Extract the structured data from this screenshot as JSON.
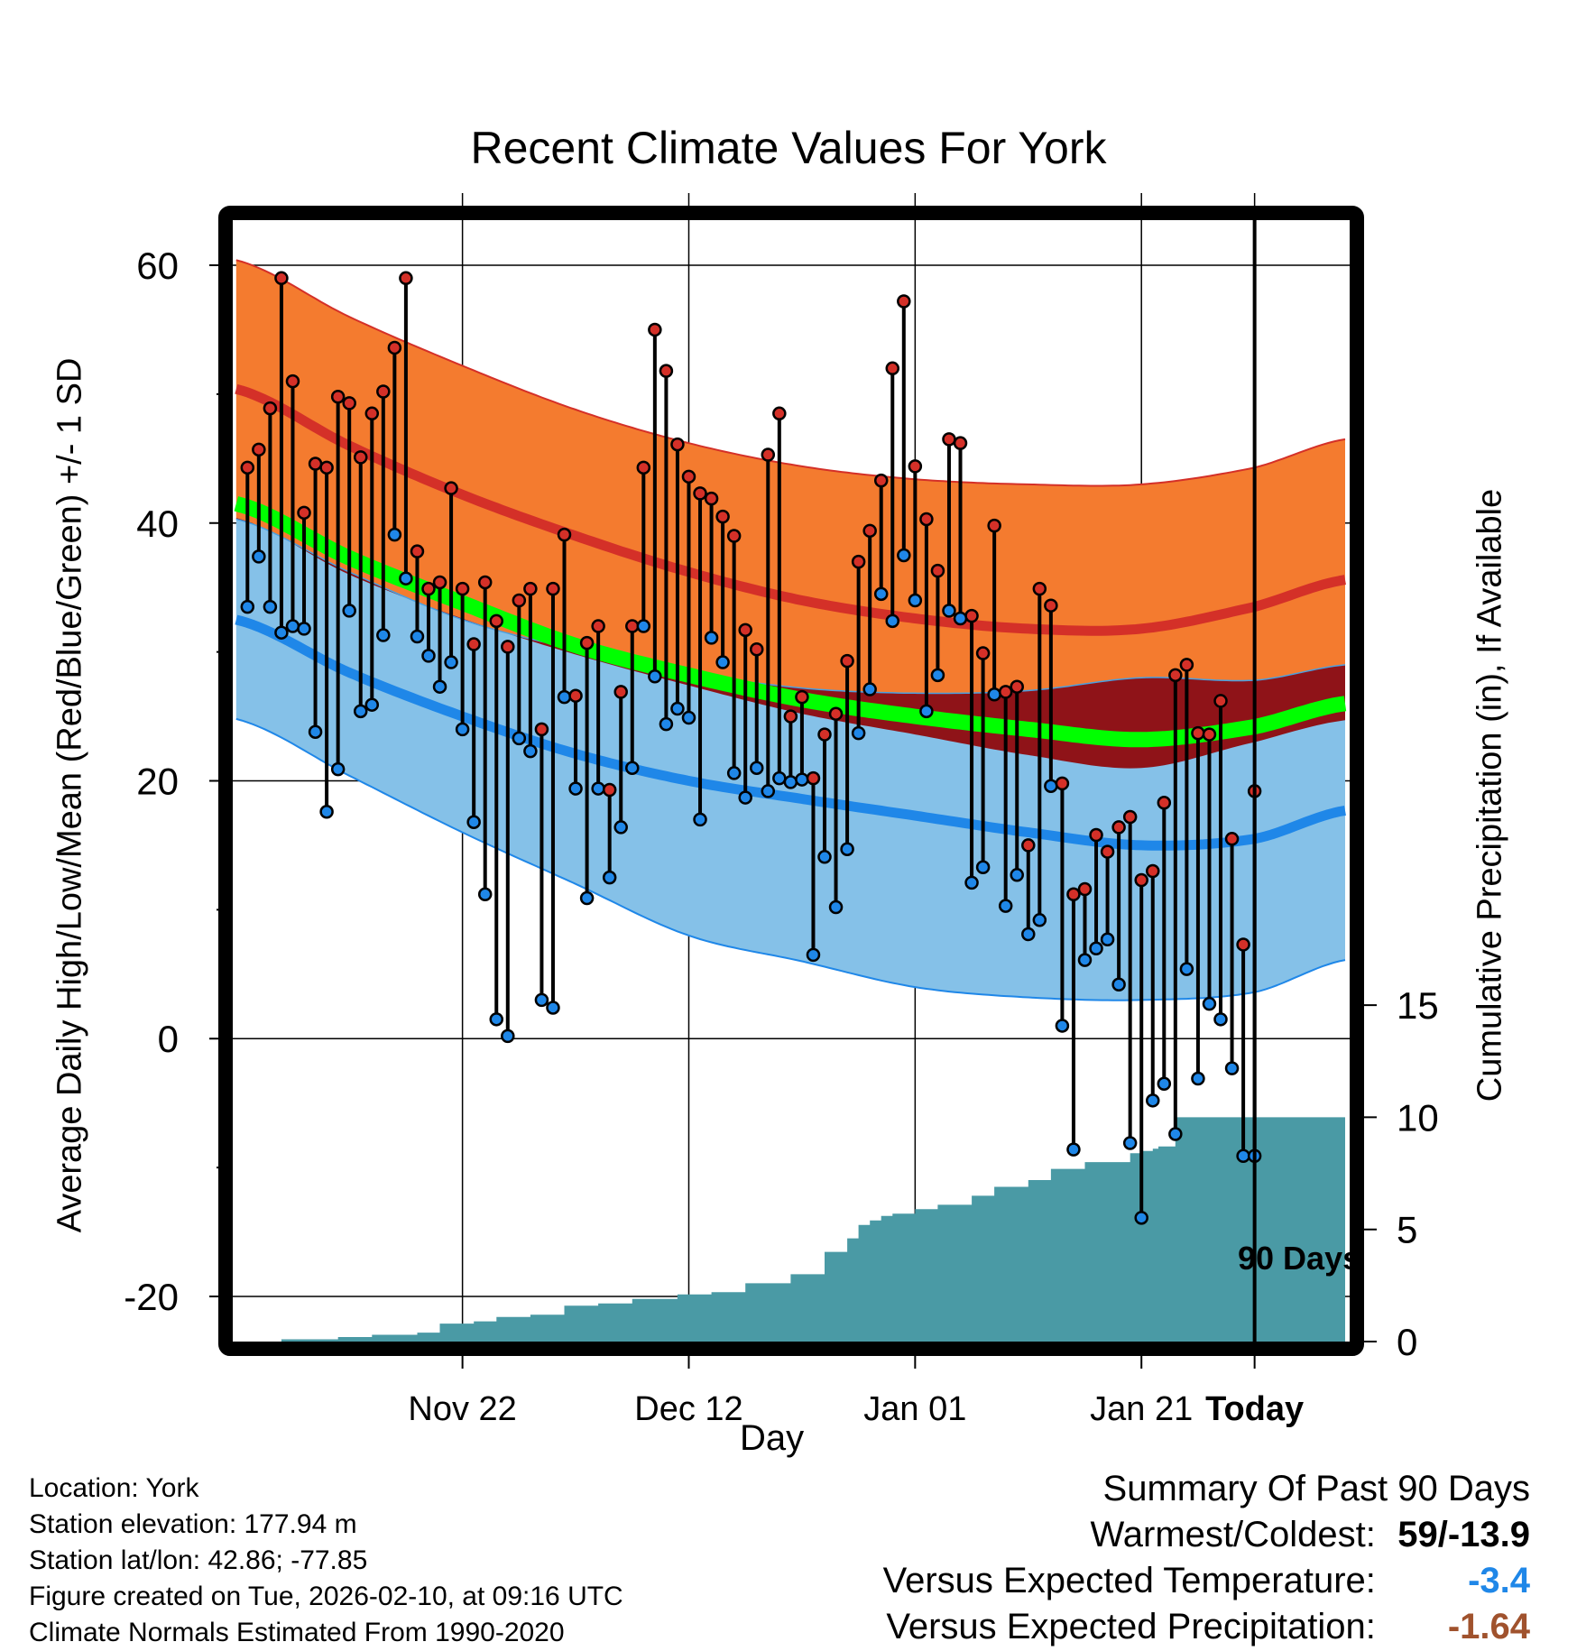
{
  "chart_data": {
    "type": "line",
    "title": "Recent Climate Values For York",
    "xlabel": "Day",
    "ylabel": "Average Daily High/Low/Mean (Red/Blue/Green) +/- 1 SD",
    "y2label": "Cumulative Precipitation (in), If Available",
    "ylim": [
      -23.5,
      63.5
    ],
    "y2lim": [
      0,
      50
    ],
    "xlim": [
      -90.3,
      8.4
    ],
    "yticks": [
      -20,
      0,
      20,
      40,
      60
    ],
    "y2ticks": [
      0,
      5,
      10,
      15
    ],
    "xticks": [
      {
        "x": -70,
        "label": "Nov 22"
      },
      {
        "x": -50,
        "label": "Dec 12"
      },
      {
        "x": -30,
        "label": "Jan 01"
      },
      {
        "x": -10,
        "label": "Jan 21"
      },
      {
        "x": 0,
        "label": "Today"
      }
    ],
    "today_label": "90 Days",
    "normals": {
      "x": [
        -90,
        -80,
        -70,
        -60,
        -50,
        -40,
        -30,
        -20,
        -10,
        0,
        8
      ],
      "high_mean": [
        50.4,
        46.0,
        42.2,
        39.0,
        36.2,
        34.0,
        32.6,
        31.8,
        31.8,
        33.5,
        35.6
      ],
      "high_plus_sd": [
        60.4,
        56.0,
        52.2,
        48.8,
        46.2,
        44.4,
        43.4,
        43.0,
        43.0,
        44.3,
        46.5
      ],
      "high_minus_sd": [
        40.4,
        36.0,
        32.6,
        29.8,
        27.4,
        25.2,
        23.6,
        22.0,
        21.0,
        23.0,
        24.7
      ],
      "mean": [
        41.5,
        37.3,
        33.8,
        30.5,
        28.2,
        26.3,
        25.0,
        24.0,
        23.2,
        24.2,
        26.0
      ],
      "low_mean": [
        32.5,
        28.4,
        25.0,
        22.1,
        20.0,
        18.6,
        17.3,
        16.0,
        15.0,
        15.5,
        17.7
      ],
      "low_plus_sd": [
        40.3,
        36.2,
        32.5,
        30.2,
        28.4,
        27.2,
        26.8,
        27.0,
        28.0,
        27.8,
        29.0
      ],
      "low_minus_sd": [
        24.8,
        20.4,
        16.0,
        12.0,
        8.0,
        6.0,
        4.0,
        3.2,
        3.0,
        3.6,
        6.1
      ]
    },
    "series": [
      {
        "name": "Daily High",
        "color": "#d43028",
        "values": [
          44.3,
          45.7,
          48.9,
          59.0,
          51.0,
          40.8,
          44.6,
          44.3,
          49.8,
          49.3,
          45.1,
          48.5,
          50.2,
          53.6,
          59.0,
          37.8,
          34.9,
          35.4,
          42.7,
          34.9,
          30.6,
          35.4,
          32.4,
          30.4,
          34.0,
          34.9,
          24.0,
          34.9,
          39.1,
          26.6,
          30.7,
          32.0,
          19.3,
          26.9,
          32.0,
          44.3,
          55.0,
          51.8,
          46.1,
          43.6,
          42.3,
          41.9,
          40.5,
          39.0,
          31.7,
          30.2,
          45.3,
          48.5,
          25.0,
          26.5,
          20.2,
          23.6,
          25.2,
          29.3,
          37.0,
          39.4,
          43.3,
          52.0,
          57.2,
          44.4,
          40.3,
          36.3,
          46.5,
          46.2,
          32.8,
          29.9,
          39.8,
          26.9,
          27.3,
          15.0,
          34.9,
          33.6,
          19.8,
          11.2,
          11.6,
          15.8,
          14.5,
          16.4,
          17.2,
          12.3,
          13.0,
          18.3,
          28.2,
          29.0,
          23.7,
          23.6,
          26.2,
          15.5,
          7.3,
          19.2
        ]
      },
      {
        "name": "Daily Low",
        "color": "#1f87e8",
        "values": [
          33.5,
          37.4,
          33.5,
          31.5,
          32.0,
          31.8,
          23.8,
          17.6,
          20.9,
          33.2,
          25.4,
          25.9,
          31.3,
          39.1,
          35.7,
          31.2,
          29.7,
          27.3,
          29.2,
          24.0,
          16.8,
          11.2,
          1.5,
          0.2,
          23.3,
          22.3,
          3.0,
          2.4,
          26.5,
          19.4,
          10.9,
          19.4,
          12.5,
          16.4,
          21.0,
          32.0,
          28.1,
          24.4,
          25.6,
          24.9,
          17.0,
          31.1,
          29.2,
          20.6,
          18.7,
          21.0,
          19.2,
          20.2,
          19.9,
          20.1,
          6.5,
          14.1,
          10.2,
          14.7,
          23.7,
          27.1,
          34.5,
          32.4,
          37.5,
          34.0,
          25.4,
          28.2,
          33.2,
          32.6,
          12.1,
          13.3,
          26.7,
          10.3,
          12.7,
          8.1,
          9.2,
          19.6,
          1.0,
          -8.6,
          6.1,
          7.0,
          7.7,
          4.2,
          -8.1,
          -13.9,
          -4.8,
          -3.5,
          -7.4,
          5.4,
          -3.1,
          2.7,
          1.5,
          -2.3,
          -9.1,
          -9.1
        ]
      },
      {
        "name": "Cumulative Precipitation",
        "color": "#4a9aa5",
        "cum_x": [
          -90,
          -86,
          -81,
          -78,
          -74,
          -72,
          -69,
          -67,
          -64,
          -61,
          -58,
          -55,
          -51,
          -48,
          -45,
          -41,
          -38,
          -36,
          -35,
          -34,
          -33,
          -32,
          -30,
          -28,
          -25,
          -23,
          -20,
          -18,
          -15,
          -11,
          -10,
          -9,
          -8.5,
          -7,
          8
        ],
        "cum_precip": [
          0.0,
          0.1,
          0.2,
          0.3,
          0.4,
          0.8,
          0.9,
          1.1,
          1.2,
          1.6,
          1.7,
          1.9,
          2.1,
          2.2,
          2.6,
          3.0,
          4.0,
          4.6,
          5.2,
          5.4,
          5.6,
          5.7,
          5.9,
          6.1,
          6.5,
          6.9,
          7.2,
          7.7,
          8.0,
          8.4,
          8.5,
          8.6,
          8.7,
          10.0,
          10.2
        ]
      }
    ]
  },
  "metadata": {
    "location": "Location: York",
    "elevation": "Station elevation: 177.94 m",
    "latlon": "Station lat/lon: 42.86; -77.85",
    "created": "Figure created on Tue, 2026-02-10, at 09:16 UTC",
    "normals": "Climate Normals Estimated From 1990-2020"
  },
  "summary": {
    "heading": "Summary Of Past 90 Days",
    "warmest_label": "Warmest/Coldest:",
    "warmest_value": "59/-13.9",
    "temp_label": "Versus Expected Temperature:",
    "temp_value": "-3.4",
    "temp_color": "#1f87e8",
    "precip_label": "Versus Expected Precipitation:",
    "precip_value": "-1.64",
    "precip_color": "#a0522d"
  },
  "colors": {
    "high_band": "#f47b2f",
    "high_line": "#d43028",
    "low_band": "#85c1e8",
    "low_line": "#1f87e8",
    "overlap": "#8f1318",
    "mean": "#00ff00",
    "precip": "#4a9aa5"
  }
}
